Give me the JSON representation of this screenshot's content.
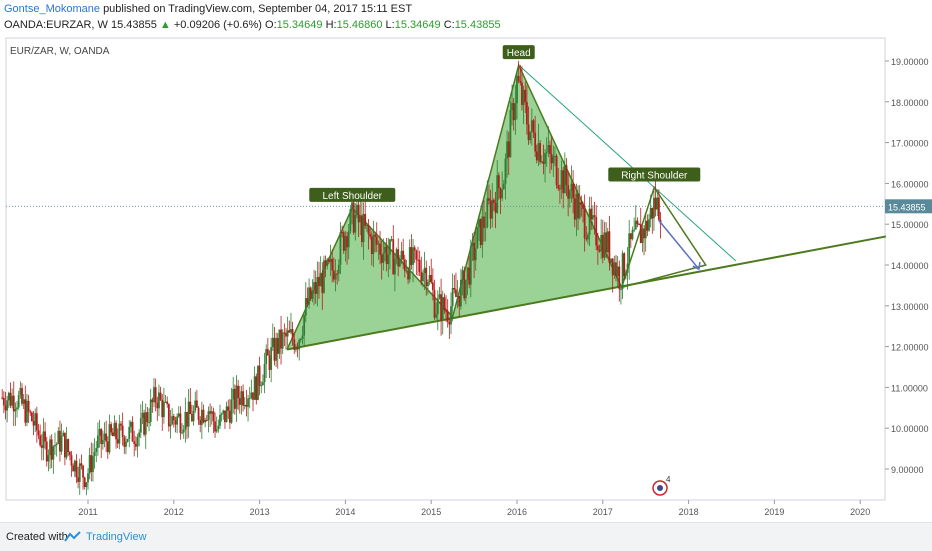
{
  "header": {
    "author": "Gontse_Mokomane",
    "published": "published on TradingView.com, September 04, 2017 15:11 EST",
    "symbol": "OANDA:EURZAR, W",
    "last": "15.43855",
    "change_arrow": "▲",
    "change": "+0.09206 (+0.6%)",
    "o_label": "O:",
    "o_val": "15.34649",
    "h_label": "H:",
    "h_val": "15.46860",
    "l_label": "L:",
    "l_val": "15.34649",
    "c_label": "C:",
    "c_val": "15.43855"
  },
  "footer": {
    "created_with": "Created with",
    "brand": "TradingView"
  },
  "colors": {
    "bull": "#2e7d32",
    "bear": "#b71c1c",
    "pattern_fill": "#8fce8a",
    "pattern_line": "#4c7a1e",
    "label_bg": "#3e5f1b",
    "price_tag": "#5a8a99"
  },
  "chart_data": {
    "type": "candlestick",
    "symbol_label": "EUR/ZAR, W, OANDA",
    "x_ticks": [
      "2011",
      "2012",
      "2013",
      "2014",
      "2015",
      "2016",
      "2017",
      "2018",
      "2019",
      "2020"
    ],
    "y_ticks": [
      "9.00000",
      "10.00000",
      "11.00000",
      "12.00000",
      "13.00000",
      "14.00000",
      "15.00000",
      "16.00000",
      "17.00000",
      "18.00000",
      "19.00000"
    ],
    "ylim": [
      8.1,
      19.3
    ],
    "last_price": "15.43855",
    "price_path": [
      [
        2010.17,
        10.75
      ],
      [
        2010.35,
        10.2
      ],
      [
        2010.5,
        9.5
      ],
      [
        2010.7,
        9.7
      ],
      [
        2010.85,
        9.1
      ],
      [
        2010.98,
        8.8
      ],
      [
        2011.1,
        9.6
      ],
      [
        2011.3,
        9.8
      ],
      [
        2011.6,
        9.9
      ],
      [
        2011.8,
        10.8
      ],
      [
        2011.95,
        10.2
      ],
      [
        2012.2,
        10.3
      ],
      [
        2012.4,
        10.5
      ],
      [
        2012.5,
        10.0
      ],
      [
        2012.75,
        10.8
      ],
      [
        2012.95,
        11.0
      ],
      [
        2013.05,
        11.5
      ],
      [
        2013.2,
        12.0
      ],
      [
        2013.3,
        12.2
      ],
      [
        2013.45,
        12.2
      ],
      [
        2013.55,
        13.0
      ],
      [
        2013.7,
        13.6
      ],
      [
        2013.85,
        13.9
      ],
      [
        2014.0,
        14.8
      ],
      [
        2014.1,
        15.2
      ],
      [
        2014.3,
        14.6
      ],
      [
        2014.55,
        14.2
      ],
      [
        2014.8,
        14.0
      ],
      [
        2014.95,
        13.9
      ],
      [
        2015.05,
        13.0
      ],
      [
        2015.2,
        12.9
      ],
      [
        2015.4,
        13.6
      ],
      [
        2015.55,
        14.7
      ],
      [
        2015.7,
        15.5
      ],
      [
        2015.85,
        16.2
      ],
      [
        2016.0,
        18.5
      ],
      [
        2016.15,
        17.3
      ],
      [
        2016.3,
        16.8
      ],
      [
        2016.45,
        16.4
      ],
      [
        2016.6,
        15.9
      ],
      [
        2016.75,
        15.2
      ],
      [
        2016.9,
        14.8
      ],
      [
        2017.05,
        14.5
      ],
      [
        2017.2,
        13.7
      ],
      [
        2017.35,
        14.6
      ],
      [
        2017.5,
        14.9
      ],
      [
        2017.6,
        15.5
      ],
      [
        2017.68,
        15.43855
      ]
    ],
    "annotations": [
      {
        "text": "Left Shoulder",
        "x": 2014.08,
        "y": 15.4
      },
      {
        "text": "Head",
        "x": 2016.02,
        "y": 18.9
      },
      {
        "text": "Right Shoulder",
        "x": 2017.6,
        "y": 15.9
      }
    ],
    "pattern_points": [
      [
        2013.32,
        11.93
      ],
      [
        2014.08,
        15.4
      ],
      [
        2015.25,
        12.73
      ],
      [
        2016.02,
        18.9
      ],
      [
        2017.22,
        13.45
      ],
      [
        2017.6,
        15.9
      ],
      [
        2018.2,
        14.0
      ]
    ],
    "neckline": [
      [
        2013.32,
        11.93
      ],
      [
        2020.3,
        14.7
      ]
    ],
    "trendline": [
      [
        2016.02,
        18.9
      ],
      [
        2018.55,
        14.1
      ]
    ],
    "projection_arrow": [
      [
        2017.65,
        15.1
      ],
      [
        2018.12,
        13.9
      ]
    ],
    "icon_badge": "4"
  }
}
